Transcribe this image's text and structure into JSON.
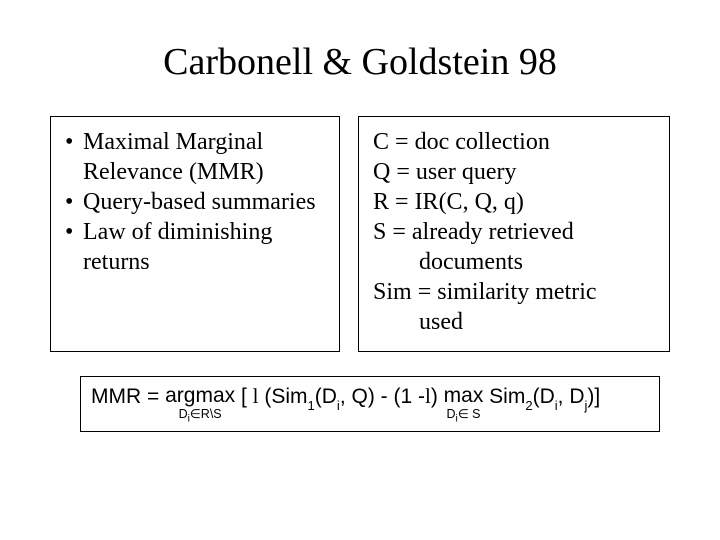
{
  "title": "Carbonell & Goldstein 98",
  "left": {
    "items": [
      "Maximal Marginal Relevance (MMR)",
      "Query-based summaries",
      "Law of diminishing returns"
    ]
  },
  "right": {
    "defs": [
      {
        "sym": "C",
        "val": "doc collection"
      },
      {
        "sym": "Q",
        "val": "user query"
      },
      {
        "sym": "R",
        "val": "IR(C, Q, θ)"
      },
      {
        "sym": "S",
        "val": "already retrieved documents"
      },
      {
        "sym": "Sim",
        "val": "similarity metric used"
      }
    ]
  },
  "formula": {
    "lhs": "MMR = ",
    "argmax_label": "argmax",
    "argmax_sub": "Di∈R\\S",
    "open": " [ ",
    "lambda": "λ",
    "sim1": "Sim",
    "sim1_sub": "1",
    "sim1_args_a": "(D",
    "sim1_args_a_sub": "i",
    "sim1_args_b": ", Q) - (1 -",
    "close_paren": ") ",
    "max_label": "max",
    "max_sub": "Di∈ S",
    "sim2": " Sim",
    "sim2_sub": "2",
    "sim2_args_a": "(D",
    "sim2_args_a_sub": "i",
    "sim2_args_b": ", D",
    "sim2_args_b_sub": "j",
    "sim2_args_c": ")]"
  },
  "style": {
    "title_fontsize": 38,
    "body_fontsize": 24,
    "formula_fontsize": 21,
    "sub_fontsize": 12.5,
    "border_color": "#000000",
    "background_color": "#ffffff",
    "text_color": "#000000",
    "body_font": "Times New Roman",
    "formula_font": "Arial"
  }
}
